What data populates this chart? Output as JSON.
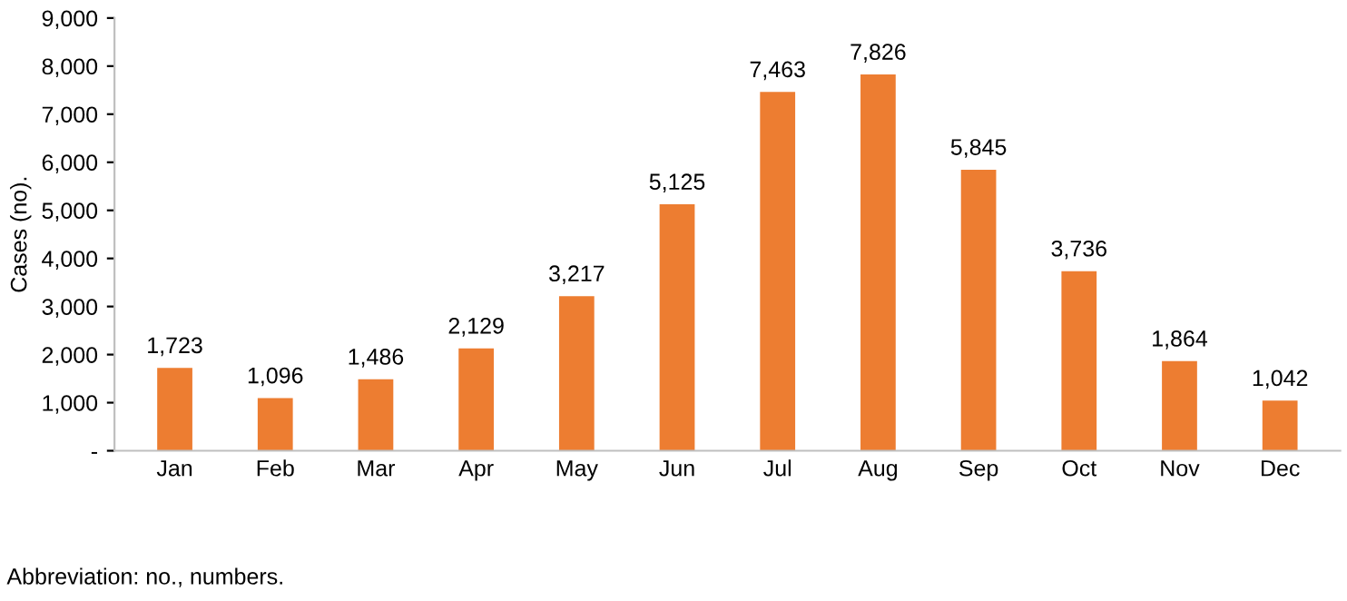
{
  "chart_data": {
    "type": "bar",
    "ylabel": "Cases (no).",
    "categories": [
      "Jan",
      "Feb",
      "Mar",
      "Apr",
      "May",
      "Jun",
      "Jul",
      "Aug",
      "Sep",
      "Oct",
      "Nov",
      "Dec"
    ],
    "values": [
      1723,
      1096,
      1486,
      2129,
      3217,
      5125,
      7463,
      7826,
      5845,
      3736,
      1864,
      1042
    ],
    "value_labels": [
      "1,723",
      "1,096",
      "1,486",
      "2,129",
      "3,217",
      "5,125",
      "7,463",
      "7,826",
      "5,845",
      "3,736",
      "1,864",
      "1,042"
    ],
    "color": "#ed7d31",
    "ylim": [
      0,
      9000
    ],
    "yticks": [
      {
        "value": 0,
        "label": "-"
      },
      {
        "value": 1000,
        "label": "1,000"
      },
      {
        "value": 2000,
        "label": "2,000"
      },
      {
        "value": 3000,
        "label": "3,000"
      },
      {
        "value": 4000,
        "label": "4,000"
      },
      {
        "value": 5000,
        "label": "5,000"
      },
      {
        "value": 6000,
        "label": "6,000"
      },
      {
        "value": 7000,
        "label": "7,000"
      },
      {
        "value": 8000,
        "label": "8,000"
      },
      {
        "value": 9000,
        "label": "9,000"
      }
    ],
    "grid": false,
    "legend": false,
    "annotations": [
      "Abbreviation: no., numbers."
    ]
  }
}
